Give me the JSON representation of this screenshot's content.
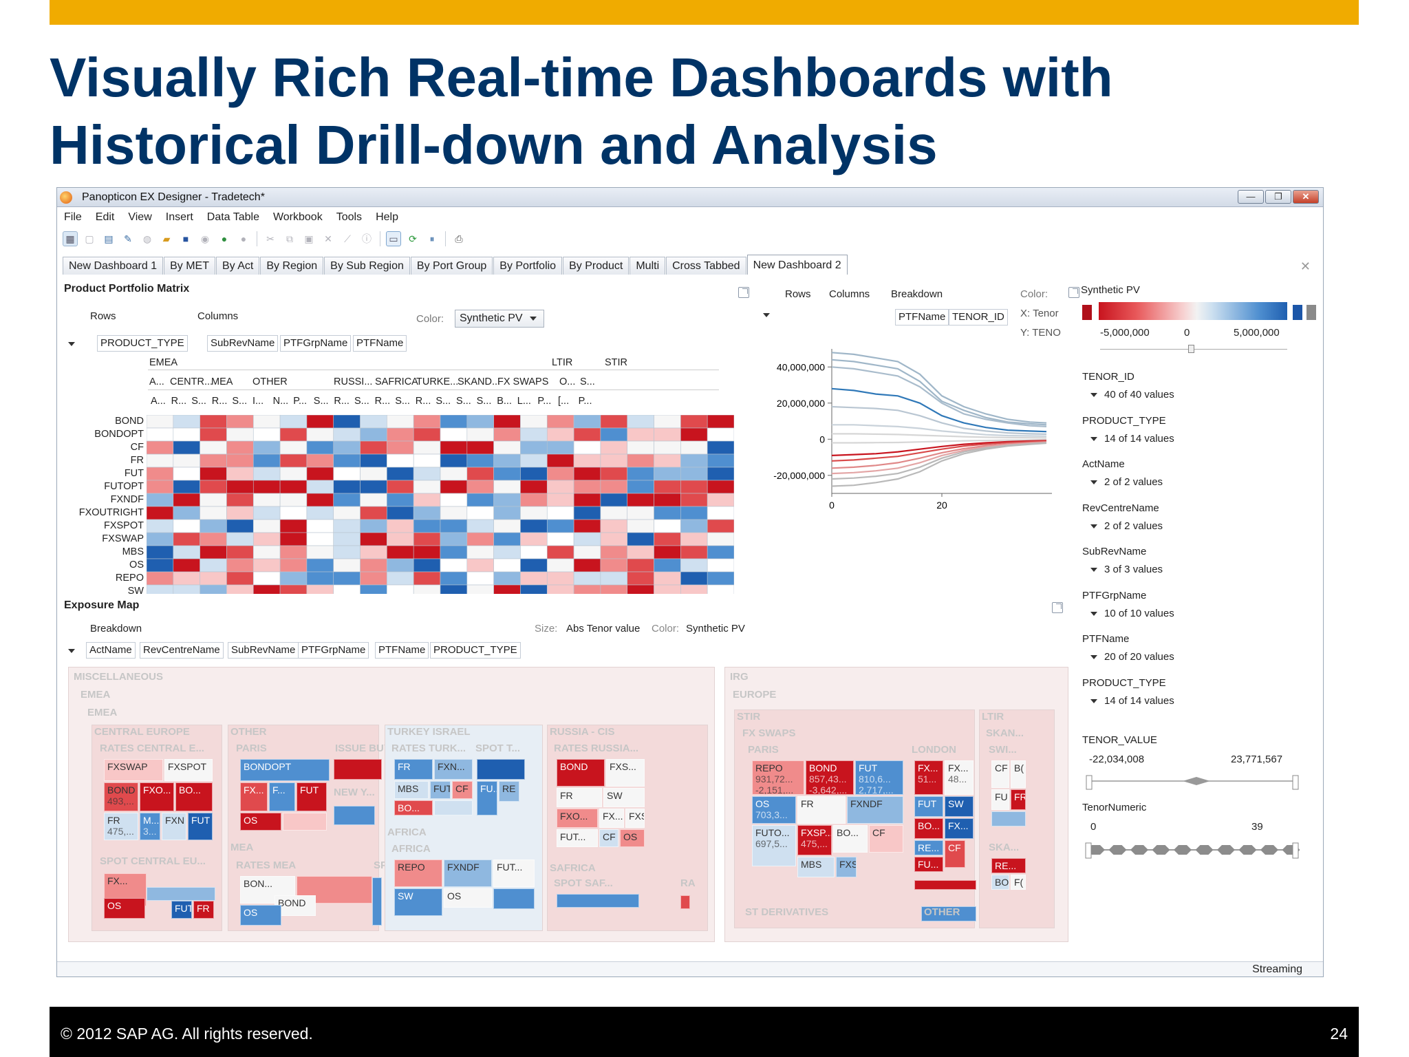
{
  "slide": {
    "title_line1": "Visually Rich Real-time Dashboards with",
    "title_line2": "Historical Drill-down and Analysis",
    "footer_copyright": "©  2012 SAP AG. All rights reserved.",
    "page_number": "24",
    "accent_color": "#f0ab00",
    "title_color": "#003366"
  },
  "window": {
    "title": "Panopticon EX Designer - Tradetech*",
    "controls": [
      "minimize-icon",
      "restore-icon",
      "close-icon"
    ]
  },
  "menu": [
    "File",
    "Edit",
    "View",
    "Insert",
    "Data Table",
    "Workbook",
    "Tools",
    "Help"
  ],
  "tabs": [
    "New Dashboard 1",
    "By MET",
    "By Act",
    "By Region",
    "By Sub Region",
    "By Port Group",
    "By Portfolio",
    "By Product",
    "Multi",
    "Cross Tabbed",
    "New Dashboard 2"
  ],
  "active_tab": "New Dashboard 2",
  "matrix": {
    "title": "Product Portfolio Matrix",
    "rows_label": "Rows",
    "columns_label": "Columns",
    "color_label": "Color:",
    "color_value": "Synthetic PV",
    "row_pill": "PRODUCT_TYPE",
    "column_pills": [
      "SubRevName",
      "PTFGrpName",
      "PTFName"
    ],
    "col_level1": [
      "EMEA",
      "LTIR",
      "STIR"
    ],
    "col_level2": [
      "A...",
      "CENTR...",
      "MEA",
      "OTHER",
      "RUSSI...",
      "SAFRICA",
      "TURKE...",
      "SKAND...",
      "FX SWAPS",
      "O...",
      "S..."
    ],
    "col_level3": [
      "A...",
      "R...",
      "S...",
      "R...",
      "S...",
      "I...",
      "N...",
      "P...",
      "S...",
      "R...",
      "S...",
      "R...",
      "S...",
      "R...",
      "S...",
      "S...",
      "S...",
      "B...",
      "L...",
      "P...",
      "[...",
      "P..."
    ],
    "row_labels": [
      "BOND",
      "BONDOPT",
      "CF",
      "FR",
      "FUT",
      "FUTOPT",
      "FXNDF",
      "FXOUTRIGHT",
      "FXSPOT",
      "FXSWAP",
      "MBS",
      "OS",
      "REPO",
      "SW"
    ]
  },
  "chart_panel": {
    "rows_label": "Rows",
    "columns_label": "Columns",
    "breakdown_label": "Breakdown",
    "color_label": "Color:",
    "breakdown_pills": [
      "PTFName",
      "TENOR_ID"
    ],
    "x_label": "X: Tenor",
    "y_label": "Y: TENO"
  },
  "chart_data": {
    "type": "line",
    "yticks": [
      "40,000,000",
      "20,000,000",
      "0",
      "-20,000,000"
    ],
    "xticks": [
      "0",
      "20"
    ],
    "ylim": [
      -30000000,
      50000000
    ],
    "xlim": [
      0,
      40
    ],
    "x": [
      0,
      4,
      8,
      12,
      16,
      20,
      24,
      28,
      32,
      36,
      39
    ],
    "series": [
      {
        "color": "#9fb6c8",
        "values": [
          48000000,
          47000000,
          45000000,
          43000000,
          36000000,
          24000000,
          18000000,
          14000000,
          11000000,
          9500000,
          9000000
        ]
      },
      {
        "color": "#9fb6c8",
        "values": [
          44000000,
          43000000,
          41000000,
          39000000,
          32000000,
          21000000,
          16000000,
          12000000,
          9500000,
          8500000,
          8000000
        ]
      },
      {
        "color": "#a9bccc",
        "values": [
          40000000,
          39000000,
          37000000,
          35000000,
          29000000,
          20000000,
          14000000,
          11000000,
          9000000,
          7500000,
          7000000
        ]
      },
      {
        "color": "#2f78b8",
        "values": [
          28000000,
          27000000,
          25000000,
          24000000,
          20000000,
          13000000,
          9000000,
          6500000,
          5000000,
          4500000,
          4200000
        ]
      },
      {
        "color": "#b9c6d2",
        "values": [
          18000000,
          17500000,
          17000000,
          16000000,
          13000000,
          9000000,
          6000000,
          4500000,
          3500000,
          3000000,
          2800000
        ]
      },
      {
        "color": "#c9d2da",
        "values": [
          8000000,
          8000000,
          7500000,
          7000000,
          6000000,
          4500000,
          3500000,
          2500000,
          2000000,
          1800000,
          1700000
        ]
      },
      {
        "color": "#d6d6d6",
        "values": [
          3000000,
          3000000,
          2800000,
          2600000,
          2200000,
          1800000,
          1400000,
          1100000,
          900000,
          800000,
          700000
        ]
      },
      {
        "color": "#d6d6d6",
        "values": [
          -2000000,
          -2000000,
          -1900000,
          -1800000,
          -1500000,
          -1200000,
          -900000,
          -700000,
          -500000,
          -400000,
          -300000
        ]
      },
      {
        "color": "#c8141e",
        "values": [
          -9000000,
          -8500000,
          -8000000,
          -7000000,
          -5500000,
          -4000000,
          -2800000,
          -2000000,
          -1400000,
          -1000000,
          -800000
        ]
      },
      {
        "color": "#d94a4a",
        "values": [
          -12000000,
          -11500000,
          -10500000,
          -9500000,
          -7500000,
          -5500000,
          -3800000,
          -2700000,
          -1900000,
          -1400000,
          -1100000
        ]
      },
      {
        "color": "#e08888",
        "values": [
          -16000000,
          -15500000,
          -14500000,
          -13000000,
          -10500000,
          -7500000,
          -5200000,
          -3600000,
          -2600000,
          -1900000,
          -1500000
        ]
      },
      {
        "color": "#e3a5a5",
        "values": [
          -19000000,
          -18500000,
          -17500000,
          -16000000,
          -13000000,
          -9000000,
          -6200000,
          -4300000,
          -3100000,
          -2300000,
          -1800000
        ]
      },
      {
        "color": "#b9b9b9",
        "values": [
          -22000000,
          -21500000,
          -20500000,
          -19000000,
          -15500000,
          -10500000,
          -7000000,
          -4800000,
          -3400000,
          -2500000,
          -2000000
        ]
      },
      {
        "color": "#b9b9b9",
        "values": [
          -26000000,
          -25500000,
          -24000000,
          -22000000,
          -18000000,
          -12000000,
          -8000000,
          -5500000,
          -3800000,
          -2800000,
          -2200000
        ]
      }
    ]
  },
  "side": {
    "legend_title": "Synthetic PV",
    "legend_ticks": [
      "-5,000,000",
      "0",
      "5,000,000"
    ],
    "filters": [
      {
        "name": "TENOR_ID",
        "value": "40 of 40 values"
      },
      {
        "name": "PRODUCT_TYPE",
        "value": "14 of 14 values"
      },
      {
        "name": "ActName",
        "value": "2 of 2 values"
      },
      {
        "name": "RevCentreName",
        "value": "2 of 2 values"
      },
      {
        "name": "SubRevName",
        "value": "3 of 3 values"
      },
      {
        "name": "PTFGrpName",
        "value": "10 of 10 values"
      },
      {
        "name": "PTFName",
        "value": "20 of 20 values"
      },
      {
        "name": "PRODUCT_TYPE",
        "value": "14 of 14 values"
      }
    ],
    "tenor_value_label": "TENOR_VALUE",
    "tenor_value_min": "-22,034,008",
    "tenor_value_max": "23,771,567",
    "tenor_numeric_label": "TenorNumeric",
    "tenor_numeric_min": "0",
    "tenor_numeric_max": "39"
  },
  "exposure": {
    "title": "Exposure Map",
    "breakdown_label": "Breakdown",
    "size_label": "Size:",
    "size_value": "Abs Tenor value",
    "color_label": "Color:",
    "color_value": "Synthetic PV",
    "pills": [
      "ActName",
      "RevCentreName",
      "SubRevName",
      "PTFGrpName",
      "PTFName",
      "PRODUCT_TYPE"
    ],
    "headers": {
      "misc": "MISCELLANEOUS",
      "emea": "EMEA",
      "emea2": "EMEA",
      "central_europe": "CENTRAL EUROPE",
      "other": "OTHER",
      "turkey": "TURKEY ISRAEL",
      "russia": "RUSSIA - CIS",
      "rates_central": "RATES CENTRAL E...",
      "paris": "PARIS",
      "issue_buy": "ISSUE BUY...",
      "rates_turk": "RATES TURK...",
      "spot_t": "SPOT T...",
      "rates_russia": "RATES RUSSIA...",
      "new_y": "NEW Y...",
      "spot_central": "SPOT CENTRAL EU...",
      "mea": "MEA",
      "rates_mea": "RATES MEA",
      "spo": "SPO",
      "africa": "AFRICA",
      "africa2": "AFRICA",
      "safrica": "SAFRICA",
      "spot_saf": "SPOT SAF...",
      "ra": "RA",
      "irg": "IRG",
      "europe": "EUROPE",
      "stir": "STIR",
      "ltir": "LTIR",
      "fx_swaps": "FX SWAPS",
      "paris2": "PARIS",
      "london": "LONDON",
      "skan": "SKAN...",
      "swi": "SWI...",
      "ska2": "SKA...",
      "st_derivatives": "ST DERIVATIVES",
      "other2": "OTHER"
    },
    "cells": {
      "fxswap": "FXSWAP",
      "fxspot": "FXSPOT",
      "bond_a": "BOND",
      "bond_a_v": "493,...",
      "fxo_a": "FXO...",
      "bo_a": "BO...",
      "fr_a": "FR",
      "fr_a_v": "475,...",
      "m_a": "M...",
      "m_a_v": "3...",
      "fxn_a": "FXN",
      "fut_a": "FUT",
      "fx_b": "FX...",
      "os_b": "OS",
      "fut_b": "FUT",
      "fr_b": "FR",
      "bondopt": "BONDOPT",
      "fx_p": "FX...",
      "f_p": "F...",
      "fut_p": "FUT",
      "os_p": "OS",
      "bon_m": "BON...",
      "bond_m": "BOND",
      "os_m": "OS",
      "fr_t": "FR",
      "fxn_t": "FXN...",
      "mbs_t": "MBS",
      "fut_t": "FUT",
      "cf_t": "CF",
      "bo_t": "BO...",
      "fu_s": "FU...",
      "re_s": "RE",
      "repo_af": "REPO",
      "fxndf_af": "FXNDF",
      "fut_af": "FUT...",
      "os_af": "OS",
      "sw_af": "SW",
      "bond_r": "BOND",
      "fxs_r": "FXS...",
      "fr_r": "FR",
      "sw_r": "SW",
      "fxo_r": "FXO...",
      "fx_r": "FX...",
      "fxs_r2": "FXS",
      "fut_r": "FUT...",
      "cf_r": "CF",
      "os_r": "OS",
      "repo_p": "REPO",
      "repo_p_v1": "931,72...",
      "repo_p_v2": "-2,151,...",
      "bond_p": "BOND",
      "bond_p_v1": "857,43...",
      "bond_p_v2": "-3,642,...",
      "fut_p2": "FUT",
      "fut_p2_v1": "810,6...",
      "fut_p2_v2": "2,717,...",
      "os_p2": "OS",
      "os_p2_v": "703,3...",
      "fr_p2": "FR",
      "fxndf_p2": "FXNDF",
      "fxsp_p2": "FXSP...",
      "fxsp_p2_v": "475,...",
      "bo_p2": "BO...",
      "cf_p2": "CF",
      "futo_p2": "FUTO...",
      "futo_p2_v": "697,5...",
      "mbs_p2": "MBS",
      "fxs_p2": "FXS",
      "fx_l": "FX...",
      "fx_l_v": "51...",
      "fx_l2": "FX...",
      "fx_l2_v": "48...",
      "fut_l": "FUT",
      "sw_l": "SW",
      "bo_l": "BO...",
      "fx_l3": "FX...",
      "re_l": "RE...",
      "fu_l": "FU...",
      "cf_l": "CF",
      "cf_s": "CF",
      "b_s": "B(",
      "fu_s2": "FU",
      "fr_s": "FR",
      "re_s2": "RE...",
      "bo_s": "BO",
      "f_s": "F("
    }
  },
  "status": "Streaming"
}
